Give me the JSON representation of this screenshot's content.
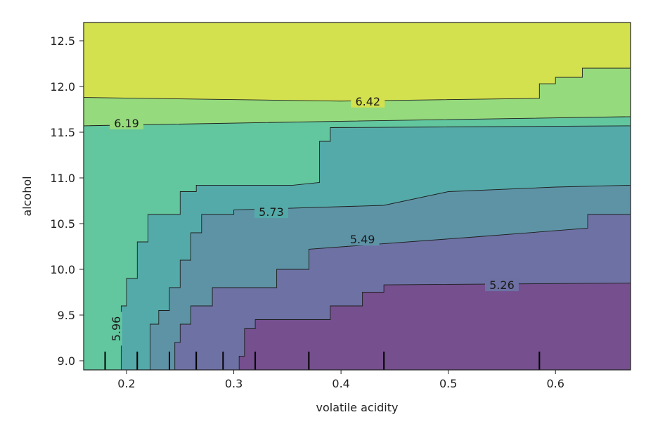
{
  "chart_data": {
    "type": "contour",
    "xlabel": "volatile acidity",
    "ylabel": "alcohol",
    "xlim": [
      0.16,
      0.67
    ],
    "ylim": [
      8.9,
      12.7
    ],
    "x_ticks": [
      {
        "value": 0.2,
        "label": "0.2"
      },
      {
        "value": 0.3,
        "label": "0.3"
      },
      {
        "value": 0.4,
        "label": "0.4"
      },
      {
        "value": 0.5,
        "label": "0.5"
      },
      {
        "value": 0.6,
        "label": "0.6"
      }
    ],
    "y_ticks": [
      {
        "value": 9.0,
        "label": "9.0"
      },
      {
        "value": 9.5,
        "label": "9.5"
      },
      {
        "value": 10.0,
        "label": "10.0"
      },
      {
        "value": 10.5,
        "label": "10.5"
      },
      {
        "value": 11.0,
        "label": "11.0"
      },
      {
        "value": 11.5,
        "label": "11.5"
      },
      {
        "value": 12.0,
        "label": "12.0"
      },
      {
        "value": 12.5,
        "label": "12.5"
      }
    ],
    "deciles_x": [
      0.18,
      0.21,
      0.24,
      0.265,
      0.29,
      0.32,
      0.37,
      0.44,
      0.585
    ],
    "fill_colors": [
      "#754f8e",
      "#6d71a4",
      "#5e93a6",
      "#54aaa9",
      "#62c69f",
      "#95da7c",
      "#d3e14e"
    ],
    "levels": [
      {
        "value": 5.26,
        "label": "5.26",
        "label_pos": [
          0.55,
          9.83
        ],
        "boundary": [
          [
            0.305,
            8.9
          ],
          [
            0.305,
            9.05
          ],
          [
            0.31,
            9.05
          ],
          [
            0.31,
            9.35
          ],
          [
            0.32,
            9.35
          ],
          [
            0.32,
            9.45
          ],
          [
            0.39,
            9.45
          ],
          [
            0.39,
            9.6
          ],
          [
            0.42,
            9.6
          ],
          [
            0.42,
            9.75
          ],
          [
            0.44,
            9.75
          ],
          [
            0.44,
            9.83
          ],
          [
            0.67,
            9.85
          ]
        ]
      },
      {
        "value": 5.49,
        "label": "5.49",
        "label_pos": [
          0.42,
          10.33
        ],
        "boundary": [
          [
            0.245,
            8.9
          ],
          [
            0.245,
            9.2
          ],
          [
            0.25,
            9.2
          ],
          [
            0.25,
            9.4
          ],
          [
            0.26,
            9.4
          ],
          [
            0.26,
            9.6
          ],
          [
            0.28,
            9.6
          ],
          [
            0.28,
            9.8
          ],
          [
            0.34,
            9.8
          ],
          [
            0.34,
            10.0
          ],
          [
            0.37,
            10.0
          ],
          [
            0.37,
            10.22
          ],
          [
            0.52,
            10.35
          ],
          [
            0.63,
            10.45
          ],
          [
            0.63,
            10.6
          ],
          [
            0.67,
            10.6
          ]
        ]
      },
      {
        "value": 5.73,
        "label": "5.73",
        "label_pos": [
          0.335,
          10.63
        ],
        "boundary": [
          [
            0.222,
            8.9
          ],
          [
            0.222,
            9.4
          ],
          [
            0.23,
            9.4
          ],
          [
            0.23,
            9.55
          ],
          [
            0.24,
            9.55
          ],
          [
            0.24,
            9.8
          ],
          [
            0.25,
            9.8
          ],
          [
            0.25,
            10.1
          ],
          [
            0.26,
            10.1
          ],
          [
            0.26,
            10.4
          ],
          [
            0.27,
            10.4
          ],
          [
            0.27,
            10.6
          ],
          [
            0.3,
            10.6
          ],
          [
            0.3,
            10.65
          ],
          [
            0.44,
            10.7
          ],
          [
            0.5,
            10.85
          ],
          [
            0.6,
            10.9
          ],
          [
            0.67,
            10.92
          ]
        ]
      },
      {
        "value": 5.96,
        "label": "5.96",
        "label_pos": [
          0.19,
          9.35
        ],
        "label_rotate": -90,
        "boundary": [
          [
            0.195,
            8.9
          ],
          [
            0.195,
            9.6
          ],
          [
            0.2,
            9.6
          ],
          [
            0.2,
            9.9
          ],
          [
            0.21,
            9.9
          ],
          [
            0.21,
            10.3
          ],
          [
            0.22,
            10.3
          ],
          [
            0.22,
            10.6
          ],
          [
            0.25,
            10.6
          ],
          [
            0.25,
            10.85
          ],
          [
            0.265,
            10.85
          ],
          [
            0.265,
            10.92
          ],
          [
            0.355,
            10.92
          ],
          [
            0.38,
            10.95
          ],
          [
            0.38,
            11.4
          ],
          [
            0.39,
            11.4
          ],
          [
            0.39,
            11.55
          ],
          [
            0.67,
            11.57
          ]
        ]
      },
      {
        "value": 6.19,
        "label": "6.19",
        "label_pos": [
          0.2,
          11.6
        ],
        "boundary": [
          [
            0.16,
            11.57
          ],
          [
            0.4,
            11.62
          ],
          [
            0.67,
            11.67
          ]
        ]
      },
      {
        "value": 6.42,
        "label": "6.42",
        "label_pos": [
          0.425,
          11.84
        ],
        "boundary": [
          [
            0.16,
            11.88
          ],
          [
            0.4,
            11.84
          ],
          [
            0.585,
            11.87
          ],
          [
            0.585,
            12.03
          ],
          [
            0.6,
            12.03
          ],
          [
            0.6,
            12.1
          ],
          [
            0.625,
            12.1
          ],
          [
            0.625,
            12.2
          ],
          [
            0.67,
            12.2
          ]
        ]
      }
    ]
  }
}
